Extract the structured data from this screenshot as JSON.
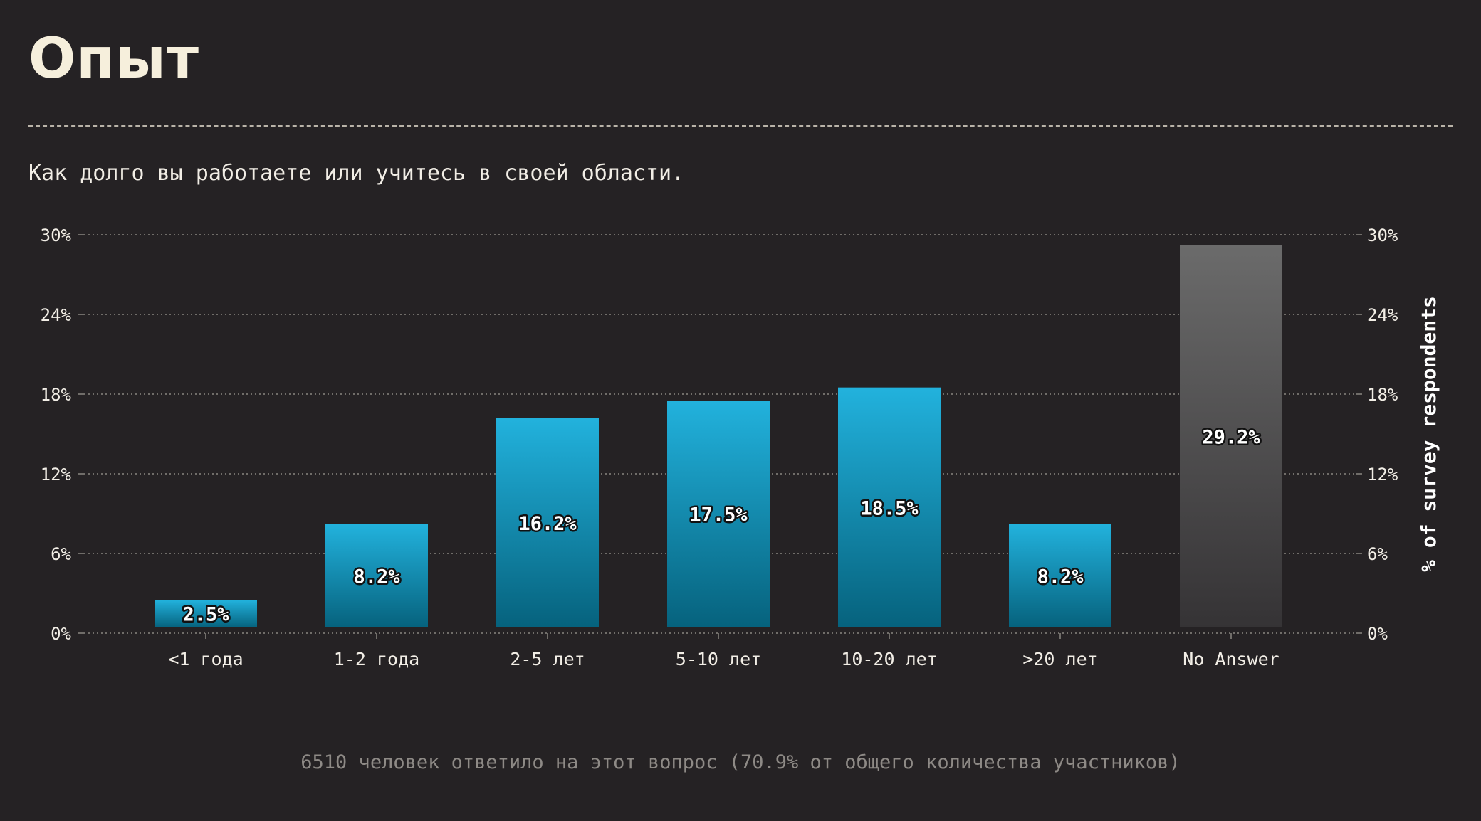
{
  "header": {
    "title": "Опыт",
    "subtitle": "Как долго вы работаете или учитесь в своей области."
  },
  "footer": {
    "note": "6510 человек ответило на этот вопрос (70.9% от общего количества участников)"
  },
  "colors": {
    "background": "#252224",
    "bar_top": "#22b2dd",
    "bar_bottom": "#06627d",
    "na_top": "#6b6b6b",
    "na_bottom": "#353335",
    "grid": "#8a8680",
    "text": "#f2eee6"
  },
  "chart_data": {
    "type": "bar",
    "title": "",
    "xlabel": "",
    "ylabel": "% of survey respondents",
    "categories": [
      "<1 года",
      "1-2 года",
      "2-5 лет",
      "5-10 лет",
      "10-20 лет",
      ">20 лет",
      "No Answer"
    ],
    "values": [
      2.5,
      8.2,
      16.2,
      17.5,
      18.5,
      8.2,
      29.2
    ],
    "value_labels": [
      "2.5%",
      "8.2%",
      "16.2%",
      "17.5%",
      "18.5%",
      "8.2%",
      "29.2%"
    ],
    "ylim": [
      0,
      30
    ],
    "yticks": [
      0,
      6,
      12,
      18,
      24,
      30
    ],
    "ytick_labels": [
      "0%",
      "6%",
      "12%",
      "18%",
      "24%",
      "30%"
    ],
    "grid": true,
    "secondary_axis": "right"
  }
}
